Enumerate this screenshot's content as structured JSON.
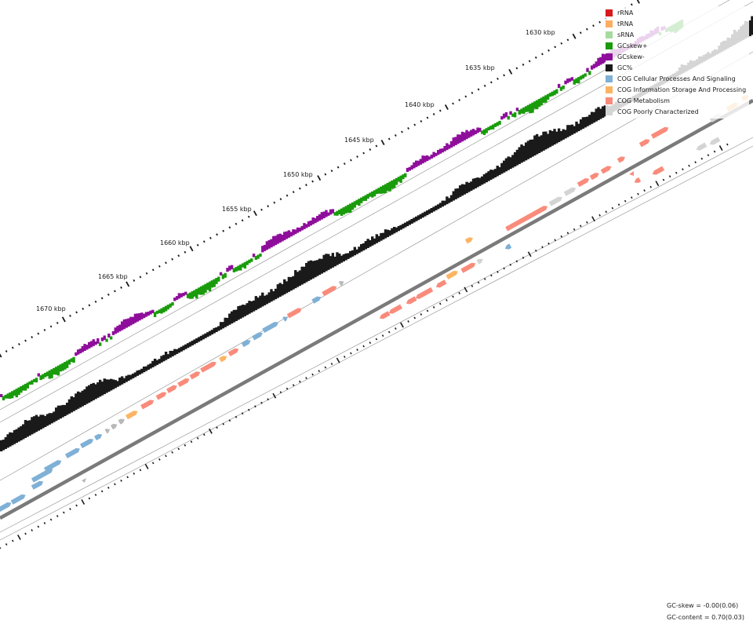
{
  "legend": [
    {
      "label": "rRNA",
      "color": "#d7191c"
    },
    {
      "label": "tRNA",
      "color": "#fdae61"
    },
    {
      "label": "sRNA",
      "color": "#a6dba0"
    },
    {
      "label": "GCskew+",
      "color": "#1a9b0c"
    },
    {
      "label": "GCskew-",
      "color": "#8e0e9b"
    },
    {
      "label": "GC%",
      "color": "#1a1a1a"
    },
    {
      "label": "COG Cellular Processes And Signaling",
      "color": "#7fb0d6"
    },
    {
      "label": "COG Information Storage And Processing",
      "color": "#fdb462"
    },
    {
      "label": "COG Metabolism",
      "color": "#f98b7b"
    },
    {
      "label": "COG Poorly Characterized",
      "color": "#d4d4d4"
    }
  ],
  "positions": [
    {
      "label": "1630 kbp"
    },
    {
      "label": "1635 kbp"
    },
    {
      "label": "1640 kbp"
    },
    {
      "label": "1645 kbp"
    },
    {
      "label": "1650 kbp"
    },
    {
      "label": "1655 kbp"
    },
    {
      "label": "1660 kbp"
    },
    {
      "label": "1665 kbp"
    },
    {
      "label": "1670 kbp"
    }
  ],
  "stats": {
    "gc_skew": "GC-skew = -0.00(0.06)",
    "gc_content": "GC-content = 0.70(0.03)"
  }
}
